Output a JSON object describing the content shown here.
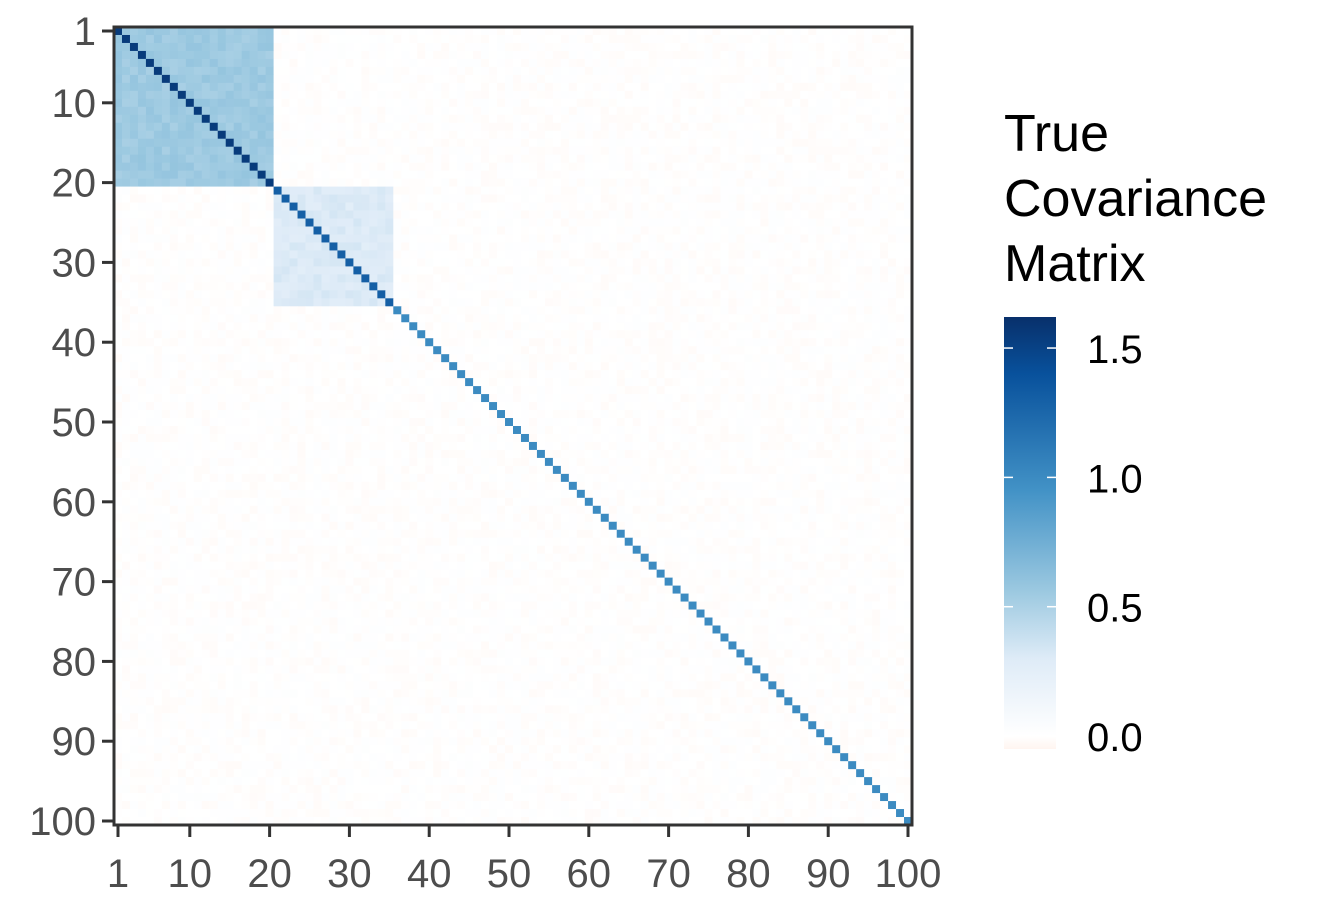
{
  "chart_data": {
    "type": "heatmap",
    "n": 100,
    "x_ticks": [
      1,
      10,
      20,
      30,
      40,
      50,
      60,
      70,
      80,
      90,
      100
    ],
    "y_ticks": [
      1,
      10,
      20,
      30,
      40,
      50,
      60,
      70,
      80,
      90,
      100
    ],
    "x_tick_labels": [
      "1",
      "10",
      "20",
      "30",
      "40",
      "50",
      "60",
      "70",
      "80",
      "90",
      "100"
    ],
    "y_tick_labels": [
      "1",
      "10",
      "20",
      "30",
      "40",
      "50",
      "60",
      "70",
      "80",
      "90",
      "100"
    ],
    "y_reversed": true,
    "blocks": [
      {
        "rows": [
          1,
          20
        ],
        "cols": [
          1,
          20
        ],
        "off_diagonal_value": 0.55,
        "diagonal_value": 1.55
      },
      {
        "rows": [
          21,
          35
        ],
        "cols": [
          21,
          35
        ],
        "off_diagonal_value": 0.3,
        "diagonal_value": 1.3
      }
    ],
    "diagonal_value_rest": 1.0,
    "background_value": 0.0,
    "noise_amplitude": 0.04,
    "legend": {
      "title_lines": [
        "True",
        "Covariance",
        "Matrix"
      ],
      "labels": [
        "1.5",
        "1.0",
        "0.5",
        "0.0"
      ],
      "label_values": [
        1.5,
        1.0,
        0.5,
        0.0
      ],
      "range": [
        -0.05,
        1.62
      ]
    },
    "colors": {
      "scale": [
        "#fff5f0",
        "#ffffff",
        "#deebf7",
        "#9ecae1",
        "#4292c6",
        "#08519c",
        "#08306b"
      ],
      "scale_values": [
        -0.05,
        0.0,
        0.3,
        0.55,
        0.95,
        1.4,
        1.62
      ],
      "axis": "#333333",
      "tick_text": "#4d4d4d"
    }
  }
}
